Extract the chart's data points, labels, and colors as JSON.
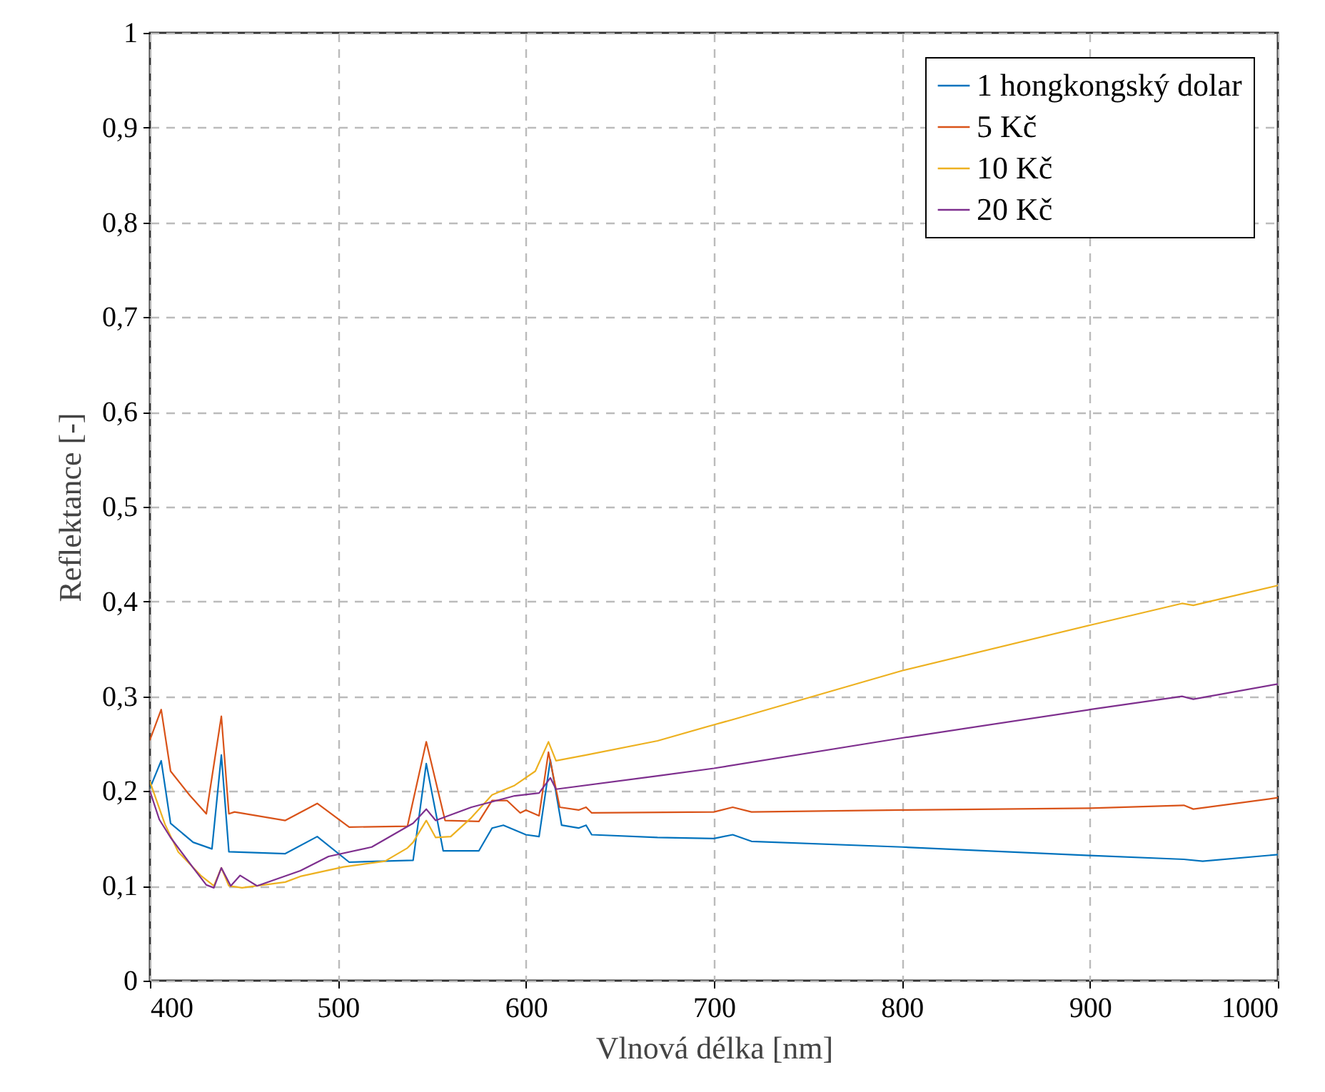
{
  "chart_data": {
    "type": "line",
    "xlabel": "Vlnová délka [nm]",
    "ylabel": "Reflektance [-]",
    "xlim": [
      400,
      1000
    ],
    "ylim": [
      0,
      1
    ],
    "xticks": [
      400,
      500,
      600,
      700,
      800,
      900,
      1000
    ],
    "yticks": [
      0,
      {
        "value": 0.1,
        "label": "0,1"
      },
      {
        "value": 0.2,
        "label": "0,2"
      },
      {
        "value": 0.3,
        "label": "0,3"
      },
      {
        "value": 0.4,
        "label": "0,4"
      },
      {
        "value": 0.5,
        "label": "0,5"
      },
      {
        "value": 0.6,
        "label": "0,6"
      },
      {
        "value": 0.7,
        "label": "0,7"
      },
      {
        "value": 0.8,
        "label": "0,8"
      },
      {
        "value": 0.9,
        "label": "0,9"
      },
      1
    ],
    "grid": true,
    "legend": "top right",
    "marker": "none",
    "line_style": "solid",
    "series": [
      {
        "name": "1 hongkongský dolar",
        "color": "#0072bd",
        "x": [
          400,
          406,
          411,
          423,
          433,
          438,
          442,
          472,
          489,
          506,
          540,
          547,
          556,
          575,
          582,
          588,
          600,
          607,
          613,
          619,
          628,
          632,
          635,
          670,
          700,
          710,
          720,
          800,
          900,
          950,
          960,
          1000
        ],
        "values": [
          0.203,
          0.232,
          0.166,
          0.146,
          0.139,
          0.238,
          0.136,
          0.134,
          0.152,
          0.125,
          0.127,
          0.229,
          0.137,
          0.137,
          0.161,
          0.164,
          0.154,
          0.152,
          0.233,
          0.164,
          0.161,
          0.164,
          0.154,
          0.151,
          0.15,
          0.154,
          0.147,
          0.141,
          0.132,
          0.128,
          0.126,
          0.133
        ]
      },
      {
        "name": "5 Kč",
        "color": "#d95319",
        "x": [
          400,
          406,
          411,
          421,
          430,
          438,
          442,
          445,
          472,
          489,
          506,
          537,
          547,
          557,
          575,
          582,
          590,
          597,
          600,
          607,
          612,
          618,
          628,
          632,
          635,
          700,
          710,
          720,
          800,
          900,
          950,
          955,
          1000
        ],
        "values": [
          0.254,
          0.286,
          0.221,
          0.196,
          0.176,
          0.279,
          0.176,
          0.178,
          0.169,
          0.187,
          0.162,
          0.163,
          0.252,
          0.169,
          0.168,
          0.19,
          0.19,
          0.177,
          0.18,
          0.174,
          0.241,
          0.183,
          0.18,
          0.183,
          0.177,
          0.178,
          0.183,
          0.178,
          0.18,
          0.182,
          0.185,
          0.181,
          0.193
        ]
      },
      {
        "name": "10 Kč",
        "color": "#edb120",
        "x": [
          400,
          408,
          415,
          427,
          434,
          438,
          442,
          449,
          472,
          480,
          503,
          525,
          537,
          540,
          547,
          552,
          560,
          571,
          582,
          594,
          605,
          612,
          616,
          632,
          670,
          700,
          711,
          800,
          900,
          949,
          955,
          1000
        ],
        "values": [
          0.21,
          0.165,
          0.136,
          0.111,
          0.1,
          0.119,
          0.1,
          0.098,
          0.104,
          0.11,
          0.12,
          0.126,
          0.14,
          0.146,
          0.169,
          0.151,
          0.152,
          0.172,
          0.196,
          0.206,
          0.221,
          0.252,
          0.232,
          0.238,
          0.253,
          0.27,
          0.276,
          0.327,
          0.375,
          0.398,
          0.396,
          0.417
        ]
      },
      {
        "name": "20 Kč",
        "color": "#7e2f8e",
        "x": [
          400,
          405,
          411,
          423,
          430,
          434,
          438,
          443,
          448,
          457,
          480,
          495,
          518,
          540,
          547,
          552,
          571,
          594,
          607,
          613,
          616,
          670,
          700,
          800,
          900,
          949,
          955,
          1000
        ],
        "values": [
          0.2,
          0.17,
          0.151,
          0.119,
          0.101,
          0.098,
          0.119,
          0.1,
          0.111,
          0.1,
          0.116,
          0.131,
          0.141,
          0.166,
          0.181,
          0.169,
          0.183,
          0.195,
          0.198,
          0.214,
          0.202,
          0.216,
          0.224,
          0.256,
          0.286,
          0.3,
          0.297,
          0.313
        ]
      }
    ]
  }
}
